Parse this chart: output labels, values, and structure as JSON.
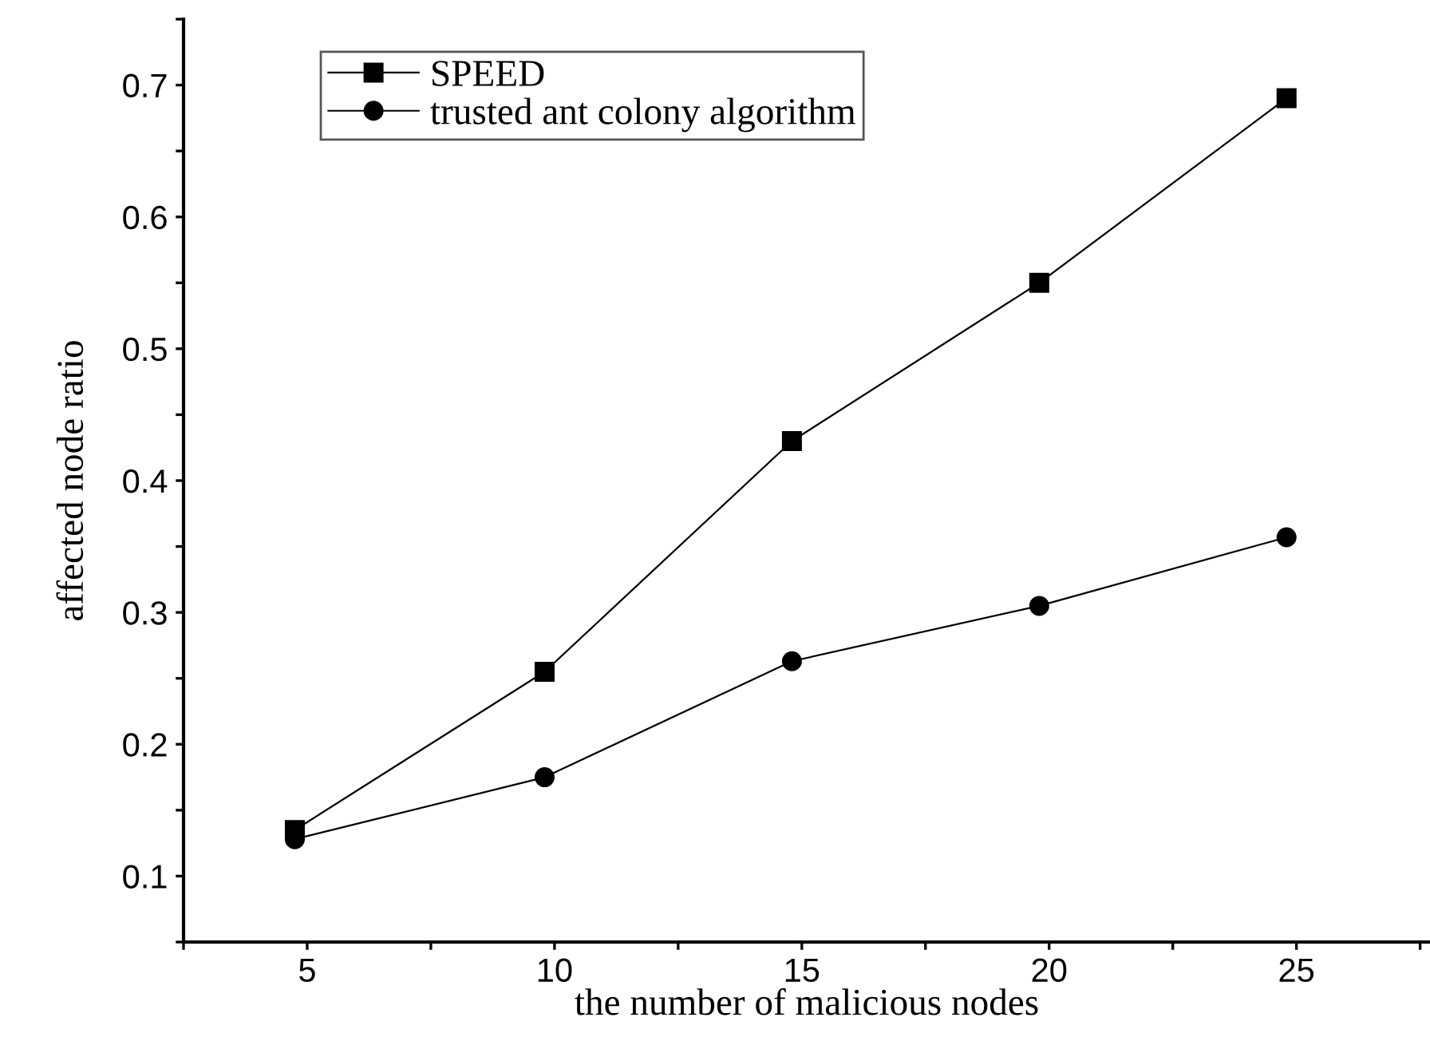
{
  "chart_data": {
    "type": "line",
    "xlabel": "the number of malicious nodes",
    "ylabel": "affected node ratio",
    "x": [
      4.75,
      9.8,
      14.8,
      19.8,
      24.8
    ],
    "series": [
      {
        "name": "SPEED",
        "color": "#000000",
        "marker": "square",
        "values": [
          0.135,
          0.255,
          0.43,
          0.55,
          0.69
        ]
      },
      {
        "name": "trusted ant colony algorithm",
        "color": "#000000",
        "marker": "circle",
        "values": [
          0.128,
          0.175,
          0.263,
          0.305,
          0.357
        ]
      }
    ],
    "xlim": [
      2.5,
      27.7
    ],
    "ylim": [
      0.05,
      0.75
    ],
    "xticks": [
      {
        "value": 2.5,
        "label": null
      },
      5,
      {
        "value": 7.5,
        "label": null
      },
      10,
      {
        "value": 12.5,
        "label": null
      },
      15,
      {
        "value": 17.5,
        "label": null
      },
      20,
      {
        "value": 22.5,
        "label": null
      },
      25,
      {
        "value": 27.5,
        "label": null
      }
    ],
    "yticks": [
      {
        "value": 0.05,
        "label": null
      },
      0.1,
      {
        "value": 0.15,
        "label": null
      },
      0.2,
      {
        "value": 0.25,
        "label": null
      },
      0.3,
      {
        "value": 0.35,
        "label": null
      },
      0.4,
      {
        "value": 0.45,
        "label": null
      },
      0.5,
      {
        "value": 0.55,
        "label": null
      },
      0.6,
      {
        "value": 0.65,
        "label": null
      },
      0.7,
      {
        "value": 0.75,
        "label": null
      }
    ],
    "grid": false,
    "legend": "top left",
    "line_style": "solid"
  }
}
